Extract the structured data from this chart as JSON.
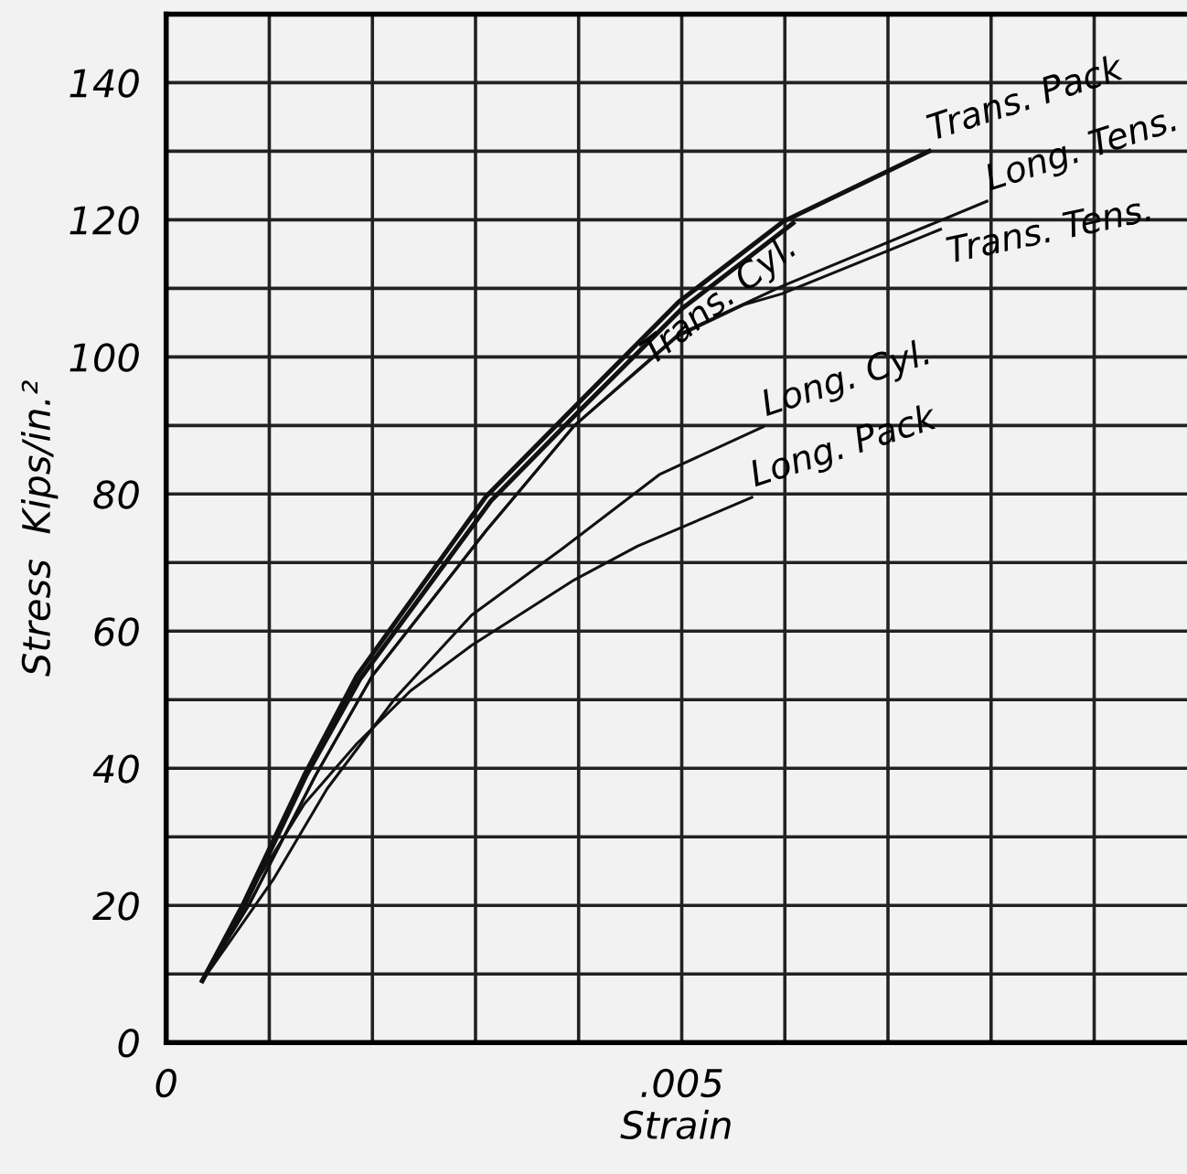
{
  "chart_data": {
    "type": "line",
    "xlabel": "Strain",
    "ylabel": "Stress  Kips/in.²",
    "xlim": [
      0,
      0.0099
    ],
    "ylim": [
      0,
      150
    ],
    "xticks": [
      0,
      {
        "value": 0.001,
        "label": null
      },
      {
        "value": 0.002,
        "label": null
      },
      {
        "value": 0.003,
        "label": null
      },
      {
        "value": 0.004,
        "label": null
      },
      {
        "value": 0.005,
        "label": ".005"
      },
      {
        "value": 0.006,
        "label": null
      },
      {
        "value": 0.007,
        "label": null
      },
      {
        "value": 0.008,
        "label": null
      },
      {
        "value": 0.009,
        "label": null
      }
    ],
    "yticks": [
      0,
      {
        "value": 10,
        "label": null
      },
      20,
      {
        "value": 30,
        "label": null
      },
      40,
      {
        "value": 50,
        "label": null
      },
      60,
      {
        "value": 70,
        "label": null
      },
      80,
      {
        "value": 90,
        "label": null
      },
      100,
      {
        "value": 110,
        "label": null
      },
      120,
      {
        "value": 130,
        "label": null
      },
      140
    ],
    "grid": true,
    "marker": "none",
    "line_style": "solid",
    "series": [
      {
        "name": "Trans. Cyl.",
        "color": "#111111",
        "x": [
          0.00035,
          0.00076,
          0.00136,
          0.00188,
          0.00315,
          0.004,
          0.005,
          0.00608
        ],
        "values": [
          9,
          20,
          39,
          53,
          79,
          92,
          107,
          119.5
        ]
      },
      {
        "name": "Trans. Pack",
        "color": "#111111",
        "x": [
          0.00035,
          0.00074,
          0.00134,
          0.00185,
          0.0031,
          0.00396,
          0.00497,
          0.00598,
          0.0074
        ],
        "values": [
          9,
          20,
          39,
          53.5,
          79.6,
          92.7,
          108,
          119.7,
          130
        ]
      },
      {
        "name": "Long. Tens.",
        "color": "#111111",
        "x": [
          0.00035,
          0.0008,
          0.00145,
          0.002,
          0.0031,
          0.00396,
          0.00496,
          0.00597,
          0.00796
        ],
        "values": [
          9,
          20,
          39,
          53.5,
          74.6,
          90,
          103.2,
          110.3,
          122.7
        ]
      },
      {
        "name": "Trans. Tens.",
        "color": "#111111",
        "x": [
          0.00035,
          0.0008,
          0.00145,
          0.002,
          0.0031,
          0.00396,
          0.00496,
          0.0056,
          0.00597,
          0.00751
        ],
        "values": [
          9,
          20,
          39,
          53.5,
          74.6,
          90,
          103,
          107.6,
          109.2,
          118.6
        ]
      },
      {
        "name": "Long. Cyl.",
        "color": "#111111",
        "x": [
          0.00035,
          0.00104,
          0.00156,
          0.00222,
          0.00296,
          0.00384,
          0.00479,
          0.00579
        ],
        "values": [
          9,
          23.8,
          37,
          50.2,
          62.3,
          72,
          82.9,
          89.8
        ]
      },
      {
        "name": "Long. Pack",
        "color": "#111111",
        "x": [
          0.00035,
          0.00082,
          0.00134,
          0.00185,
          0.00237,
          0.00296,
          0.00396,
          0.00457,
          0.00568
        ],
        "values": [
          9,
          22.2,
          34.8,
          43.6,
          51.3,
          57.9,
          67.5,
          72.4,
          79.5
        ]
      }
    ]
  }
}
